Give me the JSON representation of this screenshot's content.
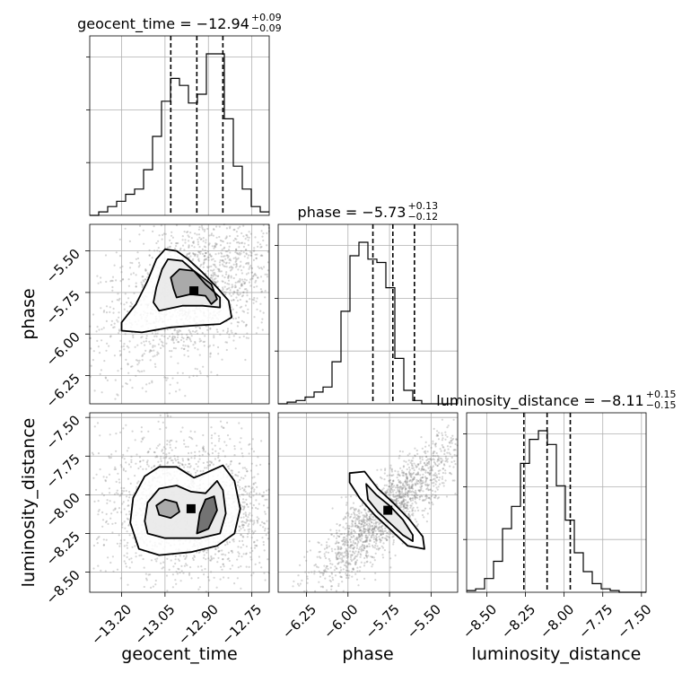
{
  "chart_data": {
    "type": "corner",
    "parameters": [
      "geocent_time",
      "phase",
      "luminosity_distance"
    ],
    "grid": true,
    "ranges": {
      "geocent_time": [
        -13.31,
        -12.69
      ],
      "phase": [
        -6.42,
        -5.34
      ],
      "luminosity_distance": [
        -8.63,
        -7.47
      ]
    },
    "ticks": {
      "geocent_time": [
        "−13.20",
        "−13.05",
        "−12.90",
        "−12.75"
      ],
      "phase": [
        "−6.25",
        "−6.00",
        "−5.75",
        "−5.50"
      ],
      "luminosity_distance": [
        "−8.50",
        "−8.25",
        "−8.00",
        "−7.75",
        "−7.50"
      ]
    },
    "tick_values": {
      "geocent_time": [
        -13.2,
        -13.05,
        -12.9,
        -12.75
      ],
      "phase": [
        -6.25,
        -6.0,
        -5.75,
        -5.5
      ],
      "luminosity_distance": [
        -8.5,
        -8.25,
        -8.0,
        -7.75,
        -7.5
      ]
    },
    "titles": {
      "geocent_time": {
        "prefix": "geocent_time = −12.94",
        "plus": "+0.09",
        "minus": "−0.09"
      },
      "phase": {
        "prefix": "phase = −5.73",
        "plus": "+0.13",
        "minus": "−0.12"
      },
      "luminosity_distance": {
        "prefix": "luminosity_distance = −8.11",
        "plus": "+0.15",
        "minus": "−0.15"
      }
    },
    "quantiles": {
      "geocent_time": [
        -13.03,
        -12.94,
        -12.85
      ],
      "phase": [
        -5.85,
        -5.73,
        -5.6
      ],
      "luminosity_distance": [
        -8.26,
        -8.11,
        -7.96
      ]
    },
    "histograms": {
      "geocent_time": {
        "edges_start": -13.31,
        "bin_width": 0.031,
        "counts": [
          0,
          0.02,
          0.05,
          0.08,
          0.12,
          0.15,
          0.26,
          0.45,
          0.65,
          0.78,
          0.74,
          0.64,
          0.69,
          0.92,
          0.92,
          0.55,
          0.28,
          0.15,
          0.05,
          0.02
        ]
      },
      "phase": {
        "edges_start": -6.42,
        "bin_width": 0.054,
        "counts": [
          0,
          0.01,
          0.02,
          0.04,
          0.07,
          0.1,
          0.25,
          0.55,
          0.88,
          0.96,
          0.86,
          0.84,
          0.69,
          0.27,
          0.08,
          0.02,
          0.0,
          0.0,
          0.0,
          0.0
        ]
      },
      "luminosity_distance": {
        "edges_start": -8.63,
        "bin_width": 0.058,
        "counts": [
          0.01,
          0.02,
          0.08,
          0.18,
          0.37,
          0.5,
          0.75,
          0.89,
          0.94,
          0.86,
          0.62,
          0.42,
          0.23,
          0.12,
          0.05,
          0.02,
          0.01,
          0.0,
          0.0,
          0.0
        ]
      }
    },
    "contours": {
      "geocent_time|phase": [
        [
          [
            -13.13,
            -5.99
          ],
          [
            -13.03,
            -5.96
          ],
          [
            -12.96,
            -5.95
          ],
          [
            -12.86,
            -5.94
          ],
          [
            -12.82,
            -5.9
          ],
          [
            -12.83,
            -5.8
          ],
          [
            -12.87,
            -5.72
          ],
          [
            -12.92,
            -5.63
          ],
          [
            -12.97,
            -5.55
          ],
          [
            -13.01,
            -5.5
          ],
          [
            -13.05,
            -5.49
          ],
          [
            -13.08,
            -5.55
          ],
          [
            -13.11,
            -5.68
          ],
          [
            -13.15,
            -5.82
          ],
          [
            -13.2,
            -5.93
          ],
          [
            -13.2,
            -5.98
          ],
          [
            -13.13,
            -5.99
          ]
        ],
        [
          [
            -13.07,
            -5.86
          ],
          [
            -12.99,
            -5.83
          ],
          [
            -12.92,
            -5.83
          ],
          [
            -12.86,
            -5.84
          ],
          [
            -12.86,
            -5.78
          ],
          [
            -12.91,
            -5.7
          ],
          [
            -12.95,
            -5.62
          ],
          [
            -12.99,
            -5.56
          ],
          [
            -13.04,
            -5.55
          ],
          [
            -13.06,
            -5.61
          ],
          [
            -13.08,
            -5.72
          ],
          [
            -13.09,
            -5.81
          ],
          [
            -13.07,
            -5.86
          ]
        ],
        [
          [
            -13.01,
            -5.78
          ],
          [
            -12.96,
            -5.76
          ],
          [
            -12.91,
            -5.77
          ],
          [
            -12.89,
            -5.82
          ],
          [
            -12.87,
            -5.79
          ],
          [
            -12.89,
            -5.7
          ],
          [
            -12.95,
            -5.62
          ],
          [
            -13.0,
            -5.61
          ],
          [
            -13.03,
            -5.66
          ],
          [
            -13.02,
            -5.73
          ],
          [
            -13.01,
            -5.78
          ]
        ]
      ],
      "geocent_time|luminosity_distance": [
        [
          [
            -13.14,
            -8.35
          ],
          [
            -13.07,
            -8.39
          ],
          [
            -12.96,
            -8.37
          ],
          [
            -12.87,
            -8.33
          ],
          [
            -12.81,
            -8.25
          ],
          [
            -12.79,
            -8.09
          ],
          [
            -12.81,
            -7.91
          ],
          [
            -12.85,
            -7.81
          ],
          [
            -12.91,
            -7.86
          ],
          [
            -12.95,
            -7.89
          ],
          [
            -13.01,
            -7.82
          ],
          [
            -13.07,
            -7.82
          ],
          [
            -13.12,
            -7.88
          ],
          [
            -13.16,
            -8.02
          ],
          [
            -13.17,
            -8.18
          ],
          [
            -13.14,
            -8.35
          ]
        ],
        [
          [
            -13.11,
            -8.25
          ],
          [
            -13.05,
            -8.28
          ],
          [
            -12.99,
            -8.28
          ],
          [
            -12.93,
            -8.28
          ],
          [
            -12.86,
            -8.25
          ],
          [
            -12.84,
            -8.12
          ],
          [
            -12.85,
            -7.97
          ],
          [
            -12.87,
            -7.91
          ],
          [
            -12.91,
            -7.99
          ],
          [
            -12.96,
            -7.98
          ],
          [
            -13.01,
            -7.94
          ],
          [
            -13.07,
            -7.96
          ],
          [
            -13.11,
            -8.05
          ],
          [
            -13.12,
            -8.17
          ],
          [
            -13.11,
            -8.25
          ]
        ],
        [
          [
            -13.07,
            -8.13
          ],
          [
            -13.03,
            -8.15
          ],
          [
            -13.0,
            -8.11
          ],
          [
            -13.01,
            -8.05
          ],
          [
            -13.05,
            -8.03
          ],
          [
            -13.08,
            -8.07
          ],
          [
            -13.07,
            -8.13
          ]
        ],
        [
          [
            -12.94,
            -8.25
          ],
          [
            -12.9,
            -8.22
          ],
          [
            -12.87,
            -8.1
          ],
          [
            -12.88,
            -8.01
          ],
          [
            -12.91,
            -8.03
          ],
          [
            -12.93,
            -8.12
          ],
          [
            -12.94,
            -8.25
          ]
        ]
      ],
      "phase|luminosity_distance": [
        [
          [
            -5.99,
            -7.86
          ],
          [
            -5.9,
            -7.85
          ],
          [
            -5.82,
            -7.96
          ],
          [
            -5.72,
            -8.06
          ],
          [
            -5.63,
            -8.16
          ],
          [
            -5.55,
            -8.27
          ],
          [
            -5.54,
            -8.35
          ],
          [
            -5.64,
            -8.33
          ],
          [
            -5.74,
            -8.23
          ],
          [
            -5.84,
            -8.13
          ],
          [
            -5.93,
            -8.02
          ],
          [
            -5.99,
            -7.92
          ],
          [
            -5.99,
            -7.86
          ]
        ],
        [
          [
            -5.89,
            -7.93
          ],
          [
            -5.83,
            -8.0
          ],
          [
            -5.75,
            -8.07
          ],
          [
            -5.67,
            -8.16
          ],
          [
            -5.61,
            -8.26
          ],
          [
            -5.61,
            -8.3
          ],
          [
            -5.67,
            -8.26
          ],
          [
            -5.74,
            -8.19
          ],
          [
            -5.82,
            -8.11
          ],
          [
            -5.88,
            -8.03
          ],
          [
            -5.89,
            -7.93
          ]
        ]
      ]
    },
    "scatter_centers": {
      "geocent_time|phase": {
        "x": -12.95,
        "y": -5.74,
        "sx": 0.1,
        "sy": 0.15,
        "rho": 0.45
      },
      "geocent_time|luminosity_distance": {
        "x": -12.96,
        "y": -8.09,
        "sx": 0.1,
        "sy": 0.15,
        "rho": -0.05
      },
      "phase|luminosity_distance": {
        "x": -5.76,
        "y": -8.1,
        "sx": 0.14,
        "sy": 0.15,
        "rho": 0.88
      }
    }
  }
}
